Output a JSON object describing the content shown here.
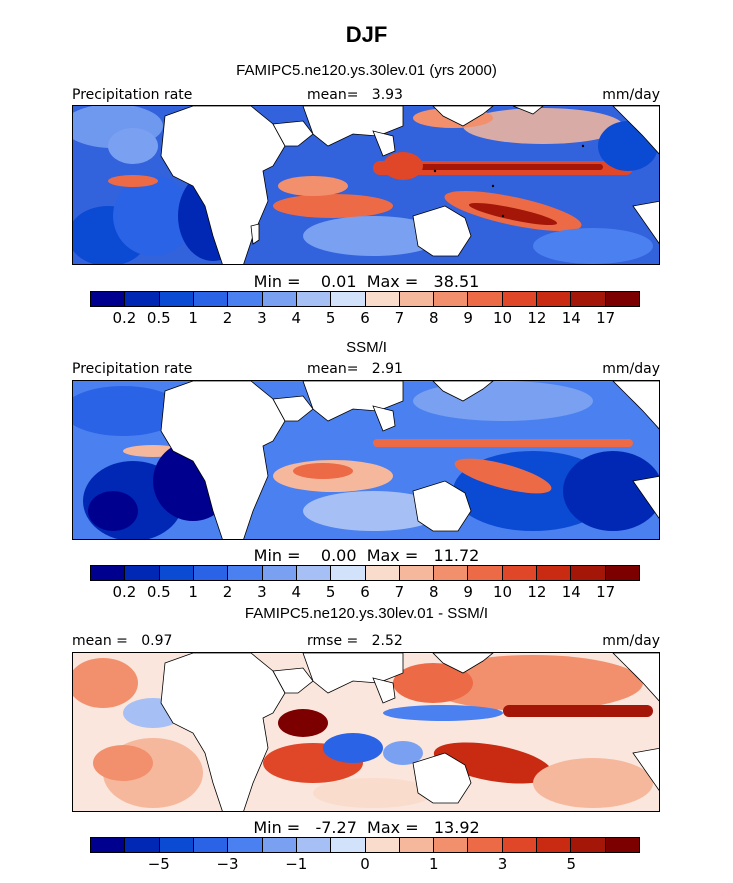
{
  "figure": {
    "title": "DJF"
  },
  "panels": [
    {
      "id": "model",
      "subtitle": "FAMIPC5.ne120.ys.30lev.01 (yrs 2000)",
      "left_label": "Precipitation rate",
      "center_label": "mean=   3.93",
      "right_label": "mm/day",
      "min_max": "Min =    0.01  Max =   38.51",
      "colorbar_ticks": [
        "0.2",
        "0.5",
        "1",
        "2",
        "3",
        "4",
        "5",
        "6",
        "7",
        "8",
        "9",
        "10",
        "12",
        "14",
        "17"
      ],
      "colors": [
        "#00008f",
        "#0028b4",
        "#0b4ad2",
        "#2a63e6",
        "#4a80ef",
        "#7aa0f1",
        "#a6c0f5",
        "#d2e2fa",
        "#fadccc",
        "#f6b89c",
        "#f2906e",
        "#ec6a46",
        "#e04628",
        "#c82a12",
        "#a31608",
        "#7d0000"
      ]
    },
    {
      "id": "obs",
      "subtitle": "SSM/I",
      "left_label": "Precipitation rate",
      "center_label": "mean=   2.91",
      "right_label": "mm/day",
      "min_max": "Min =    0.00  Max =   11.72",
      "colorbar_ticks": [
        "0.2",
        "0.5",
        "1",
        "2",
        "3",
        "4",
        "5",
        "6",
        "7",
        "8",
        "9",
        "10",
        "12",
        "14",
        "17"
      ],
      "colors": [
        "#00008f",
        "#0028b4",
        "#0b4ad2",
        "#2a63e6",
        "#4a80ef",
        "#7aa0f1",
        "#a6c0f5",
        "#d2e2fa",
        "#fadccc",
        "#f6b89c",
        "#f2906e",
        "#ec6a46",
        "#e04628",
        "#c82a12",
        "#a31608",
        "#7d0000"
      ]
    },
    {
      "id": "diff",
      "subtitle": "FAMIPC5.ne120.ys.30lev.01 - SSM/I",
      "left_label": "mean =   0.97",
      "center_label": "rmse =   2.52",
      "right_label": "mm/day",
      "min_max": "Min =   -7.27  Max =   13.92",
      "colorbar_ticks": [
        "−5",
        "−3",
        "−1",
        "0",
        "1",
        "3",
        "5"
      ],
      "colors": [
        "#00008f",
        "#0028b4",
        "#0b4ad2",
        "#2a63e6",
        "#4a80ef",
        "#7aa0f1",
        "#a6c0f5",
        "#d2e2fa",
        "#fadccc",
        "#f6b89c",
        "#f2906e",
        "#ec6a46",
        "#e04628",
        "#c82a12",
        "#a31608",
        "#7d0000"
      ]
    }
  ]
}
